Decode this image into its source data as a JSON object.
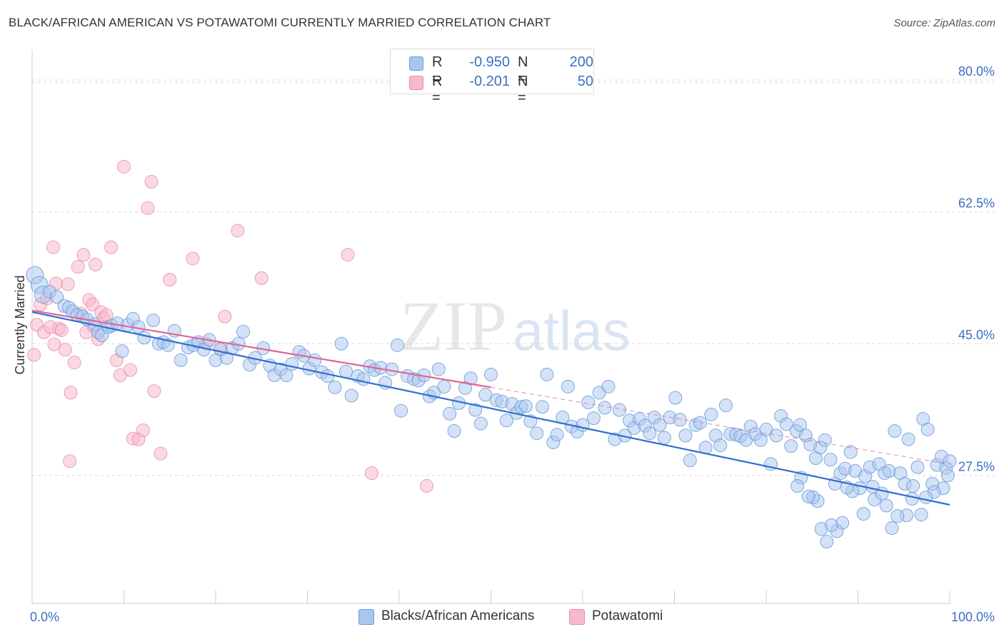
{
  "header": {
    "title": "BLACK/AFRICAN AMERICAN VS POTAWATOMI CURRENTLY MARRIED CORRELATION CHART",
    "source": "Source: ZipAtlas.com"
  },
  "legend": {
    "series": [
      {
        "r_label": "R =",
        "r_value": "-0.950",
        "n_label": "N =",
        "n_value": "200"
      },
      {
        "r_label": "R =",
        "r_value": "-0.201",
        "n_label": "N =",
        "n_value": "50"
      }
    ]
  },
  "bottom_legend": [
    "Blacks/African Americans",
    "Potawatomi"
  ],
  "watermark": {
    "zip": "ZIP",
    "atlas": "atlas"
  },
  "chart_data": {
    "type": "scatter",
    "title": "BLACK/AFRICAN AMERICAN VS POTAWATOMI CURRENTLY MARRIED CORRELATION CHART",
    "xlabel": "",
    "ylabel": "Currently Married",
    "xlim": [
      0,
      100
    ],
    "ylim": [
      10.5,
      84
    ],
    "x_tick_labels": [
      "0.0%",
      "100.0%"
    ],
    "y_ticks": [
      27.5,
      45.0,
      62.5,
      80.0
    ],
    "y_tick_labels": [
      "27.5%",
      "45.0%",
      "62.5%",
      "80.0%"
    ],
    "grid": "horizontal dashed",
    "legend_placement": "top-center",
    "colors": {
      "blue_fill": "#a9c6ef",
      "blue_stroke": "#6b9ad8",
      "blue_line": "#2f6fce",
      "pink_fill": "#f7b9cc",
      "pink_stroke": "#e98aa8",
      "pink_line": "#e06690",
      "axis_label": "#3b6fc4"
    },
    "series": [
      {
        "name": "Blacks/African Americans",
        "color": "blue",
        "trend": {
          "x": [
            0,
            100
          ],
          "y": [
            49.2,
            23.6
          ]
        },
        "points": [
          [
            0.3,
            54.1
          ],
          [
            0.8,
            52.8
          ],
          [
            1.2,
            51.5
          ],
          [
            1.9,
            51.9
          ],
          [
            2.7,
            51.2
          ],
          [
            3.5,
            50.0
          ],
          [
            4.0,
            49.8
          ],
          [
            4.4,
            49.3
          ],
          [
            4.9,
            48.8
          ],
          [
            5.5,
            48.6
          ],
          [
            6.0,
            48.2
          ],
          [
            6.8,
            47.6
          ],
          [
            7.2,
            46.5
          ],
          [
            7.6,
            46.1
          ],
          [
            8.3,
            47.2
          ],
          [
            8.7,
            47.4
          ],
          [
            9.3,
            47.7
          ],
          [
            9.8,
            44.0
          ],
          [
            10.4,
            47.5
          ],
          [
            11.0,
            48.3
          ],
          [
            11.6,
            47.2
          ],
          [
            12.2,
            45.8
          ],
          [
            13.2,
            48.1
          ],
          [
            13.8,
            45.0
          ],
          [
            14.3,
            45.2
          ],
          [
            14.8,
            44.8
          ],
          [
            15.5,
            46.7
          ],
          [
            16.2,
            42.8
          ],
          [
            17.0,
            44.5
          ],
          [
            17.6,
            44.8
          ],
          [
            18.1,
            45.2
          ],
          [
            18.7,
            44.2
          ],
          [
            19.3,
            45.5
          ],
          [
            20.0,
            42.8
          ],
          [
            20.5,
            44.3
          ],
          [
            21.2,
            43.1
          ],
          [
            21.8,
            44.4
          ],
          [
            22.5,
            45.0
          ],
          [
            23.0,
            46.6
          ],
          [
            23.7,
            42.2
          ],
          [
            24.3,
            43.1
          ],
          [
            25.2,
            44.4
          ],
          [
            25.9,
            42.1
          ],
          [
            26.4,
            40.8
          ],
          [
            27.1,
            41.6
          ],
          [
            27.7,
            40.8
          ],
          [
            28.3,
            42.3
          ],
          [
            29.1,
            43.9
          ],
          [
            29.6,
            43.4
          ],
          [
            30.2,
            41.7
          ],
          [
            30.8,
            42.8
          ],
          [
            31.6,
            41.2
          ],
          [
            32.2,
            40.7
          ],
          [
            33.0,
            39.2
          ],
          [
            33.7,
            45.0
          ],
          [
            34.2,
            41.3
          ],
          [
            34.8,
            38.1
          ],
          [
            35.5,
            40.7
          ],
          [
            36.1,
            40.3
          ],
          [
            36.8,
            42.0
          ],
          [
            37.3,
            41.5
          ],
          [
            38.0,
            41.8
          ],
          [
            38.5,
            39.8
          ],
          [
            39.2,
            41.6
          ],
          [
            39.8,
            44.8
          ],
          [
            40.2,
            36.1
          ],
          [
            40.9,
            40.7
          ],
          [
            41.6,
            40.3
          ],
          [
            42.1,
            40.1
          ],
          [
            42.7,
            40.8
          ],
          [
            43.3,
            38.0
          ],
          [
            43.8,
            38.5
          ],
          [
            44.3,
            41.6
          ],
          [
            44.9,
            39.3
          ],
          [
            45.5,
            35.7
          ],
          [
            46.0,
            33.4
          ],
          [
            46.5,
            37.1
          ],
          [
            47.2,
            39.1
          ],
          [
            47.8,
            40.4
          ],
          [
            48.3,
            36.2
          ],
          [
            48.9,
            34.4
          ],
          [
            49.4,
            38.2
          ],
          [
            50.0,
            40.9
          ],
          [
            50.6,
            37.5
          ],
          [
            51.2,
            37.3
          ],
          [
            51.7,
            34.8
          ],
          [
            52.3,
            37.0
          ],
          [
            52.8,
            35.8
          ],
          [
            53.3,
            36.6
          ],
          [
            53.8,
            36.7
          ],
          [
            54.3,
            34.7
          ],
          [
            55.0,
            33.1
          ],
          [
            55.6,
            36.6
          ],
          [
            56.1,
            40.9
          ],
          [
            56.8,
            31.9
          ],
          [
            57.2,
            32.9
          ],
          [
            57.8,
            35.2
          ],
          [
            58.4,
            39.3
          ],
          [
            58.8,
            34.0
          ],
          [
            59.4,
            33.3
          ],
          [
            60.0,
            34.2
          ],
          [
            60.6,
            37.2
          ],
          [
            61.2,
            35.1
          ],
          [
            61.8,
            38.5
          ],
          [
            62.4,
            36.5
          ],
          [
            62.8,
            39.3
          ],
          [
            63.5,
            32.3
          ],
          [
            64.0,
            36.2
          ],
          [
            64.6,
            32.8
          ],
          [
            65.1,
            34.8
          ],
          [
            65.6,
            33.8
          ],
          [
            66.2,
            35.0
          ],
          [
            66.8,
            34.1
          ],
          [
            67.3,
            33.1
          ],
          [
            67.8,
            35.2
          ],
          [
            68.4,
            34.2
          ],
          [
            68.9,
            32.5
          ],
          [
            69.5,
            35.2
          ],
          [
            70.1,
            37.8
          ],
          [
            70.6,
            34.9
          ],
          [
            71.2,
            32.8
          ],
          [
            71.7,
            29.5
          ],
          [
            72.3,
            34.2
          ],
          [
            72.8,
            34.5
          ],
          [
            73.4,
            31.2
          ],
          [
            74.0,
            35.6
          ],
          [
            74.5,
            32.8
          ],
          [
            75.0,
            31.5
          ],
          [
            75.6,
            36.8
          ],
          [
            76.1,
            33.0
          ],
          [
            76.7,
            32.9
          ],
          [
            77.2,
            32.7
          ],
          [
            77.8,
            32.2
          ],
          [
            78.3,
            34.0
          ],
          [
            78.8,
            33.0
          ],
          [
            79.4,
            32.2
          ],
          [
            80.0,
            33.6
          ],
          [
            80.5,
            29.0
          ],
          [
            81.1,
            32.8
          ],
          [
            81.6,
            35.4
          ],
          [
            82.2,
            34.3
          ],
          [
            82.7,
            31.4
          ],
          [
            83.3,
            33.4
          ],
          [
            83.7,
            34.2
          ],
          [
            84.3,
            32.8
          ],
          [
            84.8,
            31.6
          ],
          [
            85.4,
            29.8
          ],
          [
            85.9,
            31.2
          ],
          [
            86.4,
            32.2
          ],
          [
            87.0,
            29.6
          ],
          [
            87.5,
            26.4
          ],
          [
            88.1,
            27.8
          ],
          [
            88.6,
            28.4
          ],
          [
            89.2,
            30.6
          ],
          [
            89.7,
            28.1
          ],
          [
            90.2,
            25.8
          ],
          [
            90.8,
            27.4
          ],
          [
            91.3,
            28.6
          ],
          [
            91.8,
            24.3
          ],
          [
            92.3,
            29.0
          ],
          [
            92.9,
            27.8
          ],
          [
            93.4,
            28.1
          ],
          [
            94.0,
            33.4
          ],
          [
            94.6,
            27.8
          ],
          [
            95.1,
            26.4
          ],
          [
            95.5,
            32.3
          ],
          [
            96.0,
            26.1
          ],
          [
            96.5,
            28.6
          ],
          [
            97.1,
            35.0
          ],
          [
            97.6,
            33.6
          ],
          [
            98.1,
            26.4
          ],
          [
            98.6,
            28.9
          ],
          [
            99.1,
            30.0
          ],
          [
            99.6,
            28.5
          ],
          [
            100.0,
            29.4
          ],
          [
            99.8,
            27.5
          ],
          [
            99.3,
            25.8
          ],
          [
            98.3,
            25.3
          ],
          [
            97.4,
            24.6
          ],
          [
            96.9,
            22.3
          ],
          [
            95.9,
            24.4
          ],
          [
            95.3,
            22.2
          ],
          [
            94.3,
            22.1
          ],
          [
            93.7,
            20.5
          ],
          [
            93.1,
            23.5
          ],
          [
            92.6,
            25.1
          ],
          [
            91.6,
            26.0
          ],
          [
            90.6,
            22.4
          ],
          [
            89.4,
            25.4
          ],
          [
            88.8,
            25.9
          ],
          [
            88.3,
            21.2
          ],
          [
            87.7,
            20.1
          ],
          [
            87.1,
            20.9
          ],
          [
            86.6,
            18.7
          ],
          [
            86.0,
            20.4
          ],
          [
            85.6,
            24.1
          ],
          [
            85.1,
            24.6
          ],
          [
            84.6,
            24.7
          ],
          [
            83.8,
            27.2
          ],
          [
            83.4,
            26.1
          ]
        ]
      },
      {
        "name": "Potawatomi",
        "color": "pink",
        "trend": {
          "x": [
            0,
            50
          ],
          "y": [
            49.4,
            39.2
          ]
        },
        "points": [
          [
            0.2,
            43.5
          ],
          [
            0.5,
            47.5
          ],
          [
            0.9,
            50.2
          ],
          [
            1.3,
            46.5
          ],
          [
            1.6,
            51.0
          ],
          [
            2.0,
            47.2
          ],
          [
            2.3,
            57.8
          ],
          [
            2.6,
            53.0
          ],
          [
            2.9,
            47.0
          ],
          [
            3.2,
            46.8
          ],
          [
            3.6,
            44.2
          ],
          [
            3.9,
            52.9
          ],
          [
            4.2,
            38.5
          ],
          [
            4.6,
            42.5
          ],
          [
            5.0,
            55.2
          ],
          [
            5.3,
            49.0
          ],
          [
            5.6,
            56.8
          ],
          [
            5.9,
            46.5
          ],
          [
            6.2,
            50.8
          ],
          [
            6.6,
            50.2
          ],
          [
            6.9,
            55.5
          ],
          [
            7.2,
            45.6
          ],
          [
            7.5,
            49.2
          ],
          [
            7.8,
            48.4
          ],
          [
            8.1,
            48.8
          ],
          [
            8.6,
            57.8
          ],
          [
            9.2,
            42.8
          ],
          [
            9.6,
            40.8
          ],
          [
            10.0,
            68.5
          ],
          [
            10.7,
            41.5
          ],
          [
            11.0,
            32.4
          ],
          [
            11.6,
            32.3
          ],
          [
            12.1,
            33.5
          ],
          [
            12.6,
            63.0
          ],
          [
            13.0,
            66.5
          ],
          [
            13.3,
            38.7
          ],
          [
            14.0,
            30.4
          ],
          [
            15.0,
            53.5
          ],
          [
            17.5,
            56.3
          ],
          [
            19.0,
            45.0
          ],
          [
            20.6,
            44.2
          ],
          [
            21.0,
            48.6
          ],
          [
            22.4,
            60.0
          ],
          [
            25.0,
            53.7
          ],
          [
            34.4,
            56.8
          ],
          [
            37.0,
            27.8
          ],
          [
            43.0,
            26.1
          ],
          [
            4.1,
            29.4
          ],
          [
            2.4,
            44.9
          ],
          [
            6.7,
            47.3
          ]
        ]
      }
    ]
  }
}
